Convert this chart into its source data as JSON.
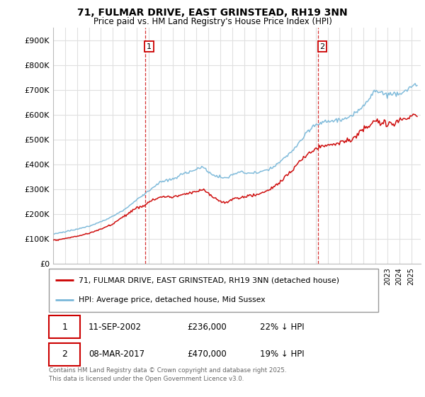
{
  "title": "71, FULMAR DRIVE, EAST GRINSTEAD, RH19 3NN",
  "subtitle": "Price paid vs. HM Land Registry's House Price Index (HPI)",
  "legend_line1": "71, FULMAR DRIVE, EAST GRINSTEAD, RH19 3NN (detached house)",
  "legend_line2": "HPI: Average price, detached house, Mid Sussex",
  "annotation1_label": "1",
  "annotation1_date": "11-SEP-2002",
  "annotation1_price": "£236,000",
  "annotation1_hpi": "22% ↓ HPI",
  "annotation2_label": "2",
  "annotation2_date": "08-MAR-2017",
  "annotation2_price": "£470,000",
  "annotation2_hpi": "19% ↓ HPI",
  "footer": "Contains HM Land Registry data © Crown copyright and database right 2025.\nThis data is licensed under the Open Government Licence v3.0.",
  "hpi_color": "#7ab8d9",
  "price_color": "#cc0000",
  "annotation_color": "#cc0000",
  "ylim": [
    0,
    950000
  ],
  "yticks": [
    0,
    100000,
    200000,
    300000,
    400000,
    500000,
    600000,
    700000,
    800000,
    900000
  ],
  "ytick_labels": [
    "£0",
    "£100K",
    "£200K",
    "£300K",
    "£400K",
    "£500K",
    "£600K",
    "£700K",
    "£800K",
    "£900K"
  ],
  "background_color": "#ffffff",
  "grid_color": "#e0e0e0",
  "purchase1_x": 2002.69,
  "purchase1_y": 236000,
  "purchase2_x": 2017.19,
  "purchase2_y": 470000,
  "xlim_left": 1995,
  "xlim_right": 2025.8
}
